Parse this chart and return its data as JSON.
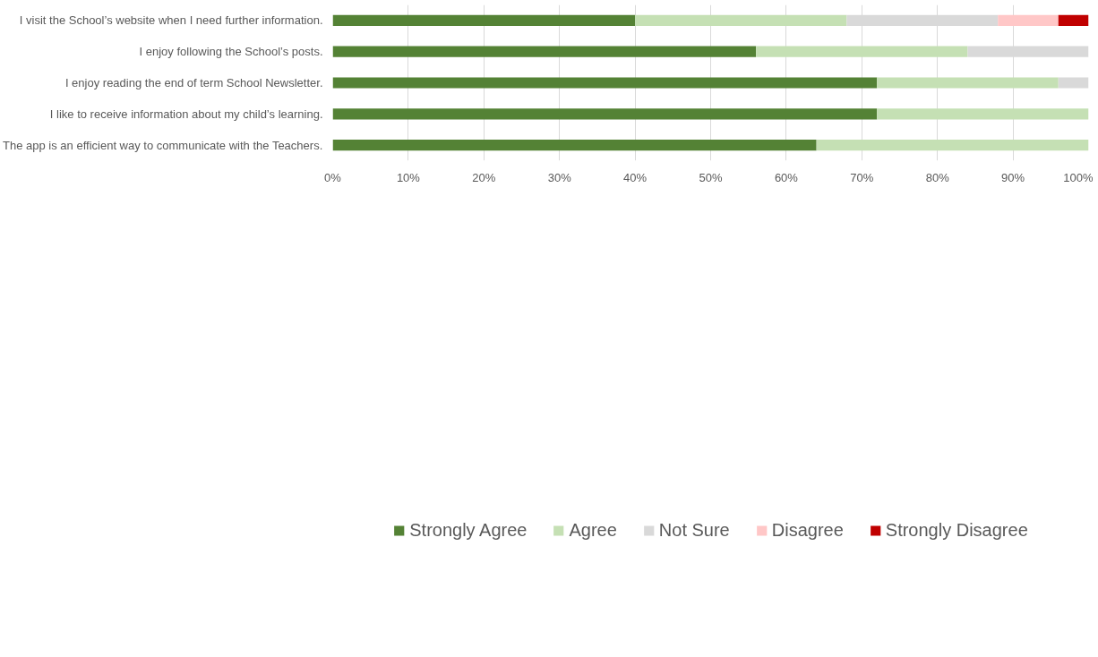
{
  "chart_data": {
    "type": "bar",
    "orientation": "horizontal",
    "stacked": true,
    "categories": [
      "I visit the School’s website when I need further information.",
      "I enjoy following the School’s posts.",
      "I enjoy reading the end of term School Newsletter.",
      "I like to receive information about my child’s learning.",
      "The app is an efficient way to communicate with the Teachers."
    ],
    "series": [
      {
        "name": "Strongly Agree",
        "color": "#548235",
        "values": [
          40,
          56,
          72,
          72,
          64
        ]
      },
      {
        "name": "Agree",
        "color": "#c5e0b4",
        "values": [
          28,
          28,
          24,
          28,
          36
        ]
      },
      {
        "name": "Not Sure",
        "color": "#d9d9d9",
        "values": [
          20,
          16,
          4,
          0,
          0
        ]
      },
      {
        "name": "Disagree",
        "color": "#ffc7c7",
        "values": [
          8,
          0,
          0,
          0,
          0
        ]
      },
      {
        "name": "Strongly Disagree",
        "color": "#c00000",
        "values": [
          4,
          0,
          0,
          0,
          0
        ]
      }
    ],
    "xlim": [
      0,
      100
    ],
    "xticks": [
      {
        "value": 0,
        "label": "0%"
      },
      {
        "value": 10,
        "label": "10%"
      },
      {
        "value": 20,
        "label": "20%"
      },
      {
        "value": 30,
        "label": "30%"
      },
      {
        "value": 40,
        "label": "40%"
      },
      {
        "value": 50,
        "label": "50%"
      },
      {
        "value": 60,
        "label": "60%"
      },
      {
        "value": 70,
        "label": "70%"
      },
      {
        "value": 80,
        "label": "80%"
      },
      {
        "value": 90,
        "label": "90%"
      },
      {
        "value": 100,
        "label": "100%"
      }
    ],
    "grid": "x",
    "legend": "bottom"
  }
}
